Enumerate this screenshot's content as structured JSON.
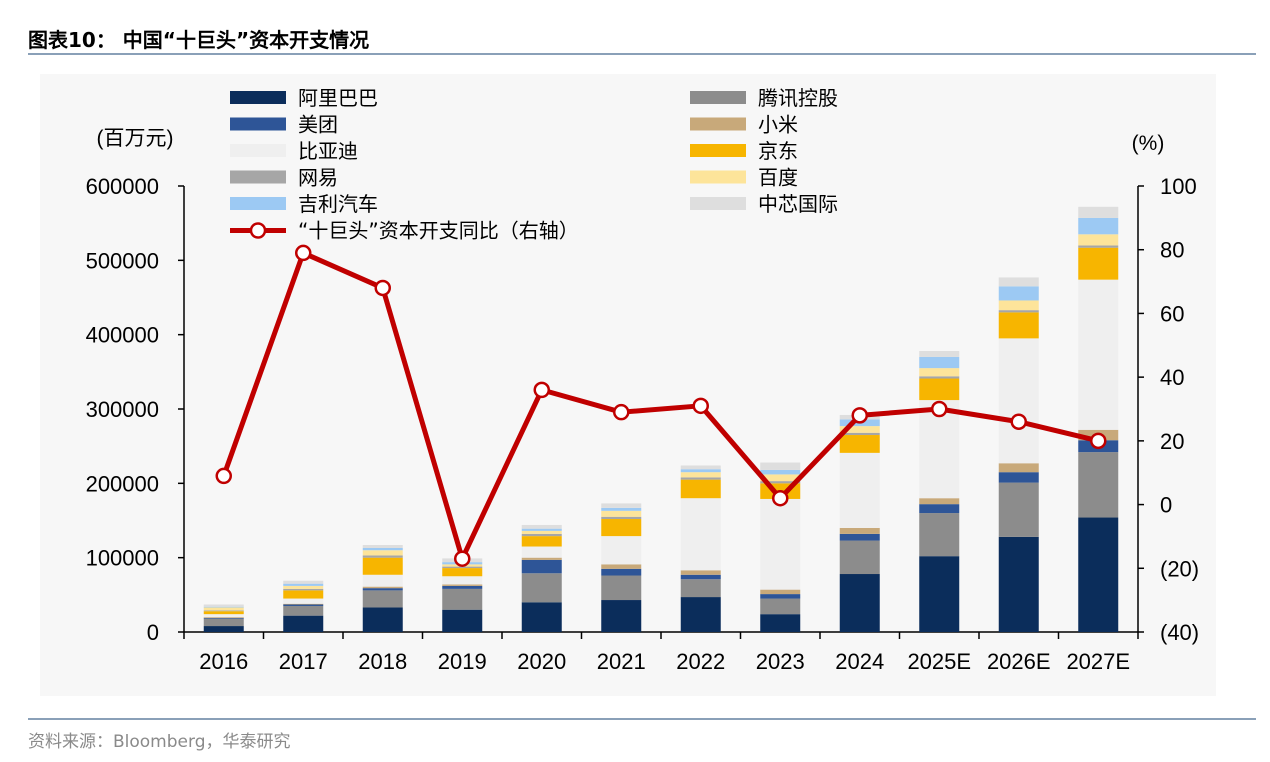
{
  "header": {
    "title": "图表10：  中国“十巨头”资本开支情况"
  },
  "footer": {
    "source": "资料来源：Bloomberg，华泰研究"
  },
  "chart_data": {
    "type": "bar",
    "stacked": true,
    "title": "图表10：  中国“十巨头”资本开支情况",
    "ylabel_left": "(百万元)",
    "ylabel_right": "(%)",
    "ylim_left": [
      0,
      600000
    ],
    "ylim_right": [
      -40,
      100
    ],
    "yticks_left": [
      "0",
      "100000",
      "200000",
      "300000",
      "400000",
      "500000",
      "600000"
    ],
    "yticks_right": [
      "(40)",
      "(20)",
      "0",
      "20",
      "40",
      "60",
      "80",
      "100"
    ],
    "categories": [
      "2016",
      "2017",
      "2018",
      "2019",
      "2020",
      "2021",
      "2022",
      "2023",
      "2024",
      "2025E",
      "2026E",
      "2027E"
    ],
    "series": [
      {
        "name": "阿里巴巴",
        "color": "#0b2d5b",
        "values": [
          8000,
          22000,
          33000,
          30000,
          40000,
          43000,
          47000,
          24000,
          78000,
          102000,
          128000,
          154000
        ]
      },
      {
        "name": "腾讯控股",
        "color": "#8c8c8c",
        "values": [
          10000,
          13000,
          23000,
          28000,
          39000,
          33000,
          24000,
          21000,
          45000,
          58000,
          73000,
          88000
        ]
      },
      {
        "name": "美团",
        "color": "#2e5597",
        "values": [
          1000,
          2000,
          3000,
          4000,
          18000,
          9000,
          6000,
          6000,
          9000,
          12000,
          14000,
          16000
        ]
      },
      {
        "name": "小米",
        "color": "#c8a97a",
        "values": [
          1000,
          1000,
          2000,
          2000,
          3000,
          6000,
          6000,
          6000,
          8000,
          8000,
          12000,
          14000
        ]
      },
      {
        "name": "比亚迪",
        "color": "#efefef",
        "values": [
          4000,
          7000,
          16000,
          11000,
          15000,
          38000,
          97000,
          122000,
          101000,
          132000,
          168000,
          202000
        ]
      },
      {
        "name": "京东",
        "color": "#f7b500",
        "values": [
          4000,
          11000,
          23000,
          11000,
          14000,
          23000,
          25000,
          21000,
          24000,
          29000,
          35000,
          43000
        ]
      },
      {
        "name": "网易",
        "color": "#a6a6a6",
        "values": [
          1000,
          2000,
          3000,
          2000,
          3000,
          3000,
          3000,
          3000,
          3000,
          3000,
          3000,
          3000
        ]
      },
      {
        "name": "百度",
        "color": "#fde49a",
        "values": [
          4000,
          4000,
          7000,
          3000,
          4000,
          8000,
          7000,
          9000,
          9000,
          11000,
          13000,
          15000
        ]
      },
      {
        "name": "吉利汽车",
        "color": "#9cc9f3",
        "values": [
          1000,
          3000,
          3000,
          3000,
          3000,
          4000,
          4000,
          6000,
          9000,
          15000,
          19000,
          22000
        ]
      },
      {
        "name": "中芯国际",
        "color": "#dedede",
        "values": [
          3000,
          4000,
          4000,
          5000,
          5000,
          6000,
          5000,
          10000,
          6000,
          8000,
          12000,
          15000
        ]
      }
    ],
    "line_series": {
      "name": "“十巨头”资本开支同比（右轴）",
      "color": "#c00000",
      "axis": "right",
      "values": [
        9,
        79,
        68,
        -17,
        36,
        29,
        31,
        2,
        28,
        30,
        26,
        20
      ]
    },
    "legend_position": "top",
    "grid": false
  }
}
